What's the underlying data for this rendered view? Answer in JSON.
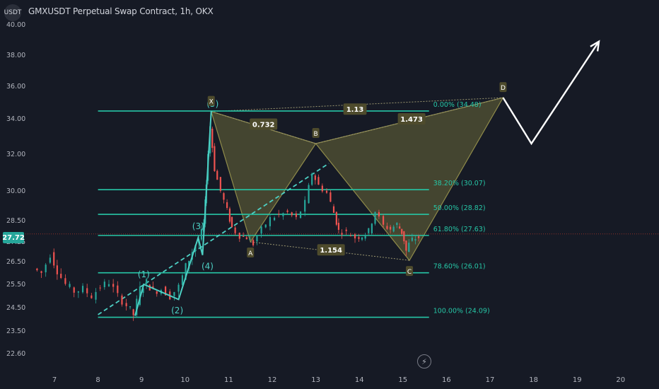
{
  "header": {
    "symbol_badge": "USDT",
    "title": "GMXUSDT Perpetual Swap Contract, 1h, OKX"
  },
  "last_price_label": "27.72",
  "icons": {
    "replay": "lightning-icon"
  },
  "colors": {
    "background": "#161a25",
    "fib_line": "#26c6a6",
    "pattern_fill": "#6b6a3a",
    "pattern_stroke": "#8f8b4a",
    "wave_line": "#4dd0c4",
    "candle_up": "#26a69a",
    "candle_down": "#ef5350",
    "arrow": "#ffffff",
    "axis_text": "#b2b5be",
    "label_bg": "#4e4b2c"
  },
  "chart_data": {
    "type": "candlestick",
    "title": "GMXUSDT Perpetual Swap Contract, 1h, OKX",
    "ylim": [
      21.8,
      40.3
    ],
    "xlim": [
      6.4,
      21.0
    ],
    "y_ticks": [
      {
        "v": 40.0,
        "label": "40.00"
      },
      {
        "v": 38.0,
        "label": "38.00"
      },
      {
        "v": 36.0,
        "label": "36.00"
      },
      {
        "v": 34.0,
        "label": "34.00"
      },
      {
        "v": 32.0,
        "label": "32.00"
      },
      {
        "v": 30.0,
        "label": "30.00"
      },
      {
        "v": 28.5,
        "label": "28.50"
      },
      {
        "v": 27.25,
        "label": "27.25"
      },
      {
        "v": 26.5,
        "label": "26.50"
      },
      {
        "v": 25.5,
        "label": "25.50"
      },
      {
        "v": 24.5,
        "label": "24.50"
      },
      {
        "v": 23.5,
        "label": "23.50"
      },
      {
        "v": 22.6,
        "label": "22.60"
      }
    ],
    "x_ticks": [
      {
        "v": 7,
        "label": "7"
      },
      {
        "v": 8,
        "label": "8"
      },
      {
        "v": 9,
        "label": "9"
      },
      {
        "v": 10,
        "label": "10"
      },
      {
        "v": 11,
        "label": "11"
      },
      {
        "v": 12,
        "label": "12"
      },
      {
        "v": 13,
        "label": "13"
      },
      {
        "v": 14,
        "label": "14"
      },
      {
        "v": 15,
        "label": "15"
      },
      {
        "v": 16,
        "label": "16"
      },
      {
        "v": 17,
        "label": "17"
      },
      {
        "v": 18,
        "label": "18"
      },
      {
        "v": 19,
        "label": "19"
      },
      {
        "v": 20,
        "label": "20"
      }
    ],
    "last_price": 27.72,
    "price_path": [
      [
        6.55,
        26.2
      ],
      [
        6.75,
        26.0
      ],
      [
        6.95,
        26.8
      ],
      [
        7.1,
        26.1
      ],
      [
        7.3,
        25.5
      ],
      [
        7.5,
        25.2
      ],
      [
        7.7,
        25.3
      ],
      [
        7.9,
        25.0
      ],
      [
        8.1,
        25.4
      ],
      [
        8.3,
        25.6
      ],
      [
        8.5,
        25.0
      ],
      [
        8.7,
        24.6
      ],
      [
        8.85,
        24.2
      ],
      [
        9.0,
        25.3
      ],
      [
        9.15,
        25.6
      ],
      [
        9.3,
        25.2
      ],
      [
        9.5,
        25.3
      ],
      [
        9.7,
        25.0
      ],
      [
        9.9,
        25.4
      ],
      [
        10.05,
        26.3
      ],
      [
        10.2,
        26.9
      ],
      [
        10.35,
        27.4
      ],
      [
        10.45,
        28.3
      ],
      [
        10.5,
        30.5
      ],
      [
        10.6,
        33.6
      ],
      [
        10.7,
        31.2
      ],
      [
        10.85,
        30.0
      ],
      [
        11.0,
        29.0
      ],
      [
        11.1,
        28.1
      ],
      [
        11.3,
        27.6
      ],
      [
        11.45,
        27.5
      ],
      [
        11.6,
        27.2
      ],
      [
        11.8,
        28.0
      ],
      [
        12.0,
        28.6
      ],
      [
        12.2,
        28.8
      ],
      [
        12.4,
        28.9
      ],
      [
        12.6,
        28.6
      ],
      [
        12.8,
        29.4
      ],
      [
        12.95,
        31.0
      ],
      [
        13.1,
        30.3
      ],
      [
        13.3,
        29.9
      ],
      [
        13.45,
        28.9
      ],
      [
        13.55,
        27.9
      ],
      [
        13.75,
        27.8
      ],
      [
        13.95,
        27.5
      ],
      [
        14.1,
        27.6
      ],
      [
        14.25,
        27.9
      ],
      [
        14.4,
        29.0
      ],
      [
        14.6,
        28.2
      ],
      [
        14.75,
        28.0
      ],
      [
        14.9,
        28.3
      ],
      [
        15.0,
        27.8
      ],
      [
        15.1,
        26.9
      ],
      [
        15.25,
        27.4
      ],
      [
        15.4,
        27.5
      ]
    ],
    "fib_levels": [
      {
        "pct": "0.00%",
        "price": 34.48,
        "label": "0.00% (34.48)"
      },
      {
        "pct": "38.20%",
        "price": 30.07,
        "label": "38.20% (30.07)"
      },
      {
        "pct": "50.00%",
        "price": 28.82,
        "label": "50.00% (28.82)"
      },
      {
        "pct": "61.80%",
        "price": 27.63,
        "label": "61.80% (27.63)"
      },
      {
        "pct": "78.60%",
        "price": 26.01,
        "label": "78.60% (26.01)"
      },
      {
        "pct": "100.00%",
        "price": 24.09,
        "label": "100.00% (24.09)"
      }
    ],
    "fib_x_range": [
      8.0,
      15.6
    ],
    "harmonic_points": [
      {
        "label": "X",
        "x": 10.6,
        "y": 34.45
      },
      {
        "label": "A",
        "x": 11.5,
        "y": 27.25
      },
      {
        "label": "B",
        "x": 13.0,
        "y": 32.6
      },
      {
        "label": "C",
        "x": 15.15,
        "y": 26.55
      },
      {
        "label": "D",
        "x": 17.3,
        "y": 35.3
      }
    ],
    "ratios": [
      {
        "label": "0.732",
        "x": 11.8,
        "y": 33.7
      },
      {
        "label": "1.13",
        "x": 13.9,
        "y": 34.6
      },
      {
        "label": "1.473",
        "x": 15.2,
        "y": 34.0
      },
      {
        "label": "1.154",
        "x": 13.35,
        "y": 26.95
      }
    ],
    "waves": [
      {
        "label": "(1)",
        "x": 9.05,
        "y": 25.5
      },
      {
        "label": "(2)",
        "x": 9.9,
        "y": 24.8
      },
      {
        "label": "(3)",
        "x": 10.3,
        "y": 27.5
      },
      {
        "label": "(4)",
        "x": 10.4,
        "y": 26.6
      },
      {
        "label": "(5)",
        "x": 10.6,
        "y": 34.48
      }
    ],
    "wave_path": [
      [
        8.85,
        24.15
      ],
      [
        9.05,
        25.5
      ],
      [
        9.85,
        24.85
      ],
      [
        10.3,
        27.5
      ],
      [
        10.4,
        26.75
      ],
      [
        10.6,
        34.48
      ]
    ],
    "trend_line": [
      [
        8.0,
        24.2
      ],
      [
        13.3,
        31.5
      ]
    ],
    "projection_arrow": [
      [
        17.3,
        35.3
      ],
      [
        17.95,
        32.6
      ],
      [
        19.5,
        38.9
      ]
    ]
  }
}
